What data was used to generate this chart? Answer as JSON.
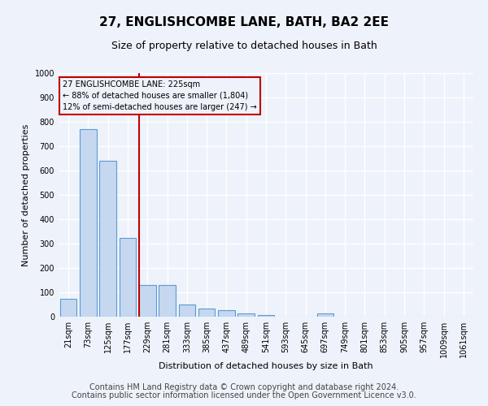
{
  "title": "27, ENGLISHCOMBE LANE, BATH, BA2 2EE",
  "subtitle": "Size of property relative to detached houses in Bath",
  "xlabel": "Distribution of detached houses by size in Bath",
  "ylabel": "Number of detached properties",
  "categories": [
    "21sqm",
    "73sqm",
    "125sqm",
    "177sqm",
    "229sqm",
    "281sqm",
    "333sqm",
    "385sqm",
    "437sqm",
    "489sqm",
    "541sqm",
    "593sqm",
    "645sqm",
    "697sqm",
    "749sqm",
    "801sqm",
    "853sqm",
    "905sqm",
    "957sqm",
    "1009sqm",
    "1061sqm"
  ],
  "values": [
    75,
    770,
    640,
    325,
    130,
    130,
    50,
    35,
    28,
    15,
    8,
    0,
    0,
    15,
    0,
    0,
    0,
    0,
    0,
    0,
    0
  ],
  "bar_color": "#c5d8f0",
  "bar_edge_color": "#5b9bd5",
  "vline_color": "#c00000",
  "annotation_text": "27 ENGLISHCOMBE LANE: 225sqm\n← 88% of detached houses are smaller (1,804)\n12% of semi-detached houses are larger (247) →",
  "annotation_box_color": "#c00000",
  "ylim": [
    0,
    1000
  ],
  "yticks": [
    0,
    100,
    200,
    300,
    400,
    500,
    600,
    700,
    800,
    900,
    1000
  ],
  "footer_line1": "Contains HM Land Registry data © Crown copyright and database right 2024.",
  "footer_line2": "Contains public sector information licensed under the Open Government Licence v3.0.",
  "bg_color": "#eef2fa",
  "plot_bg_color": "#eef2fa",
  "grid_color": "#ffffff",
  "title_fontsize": 11,
  "subtitle_fontsize": 9,
  "axis_fontsize": 8,
  "tick_fontsize": 7,
  "footer_fontsize": 7
}
